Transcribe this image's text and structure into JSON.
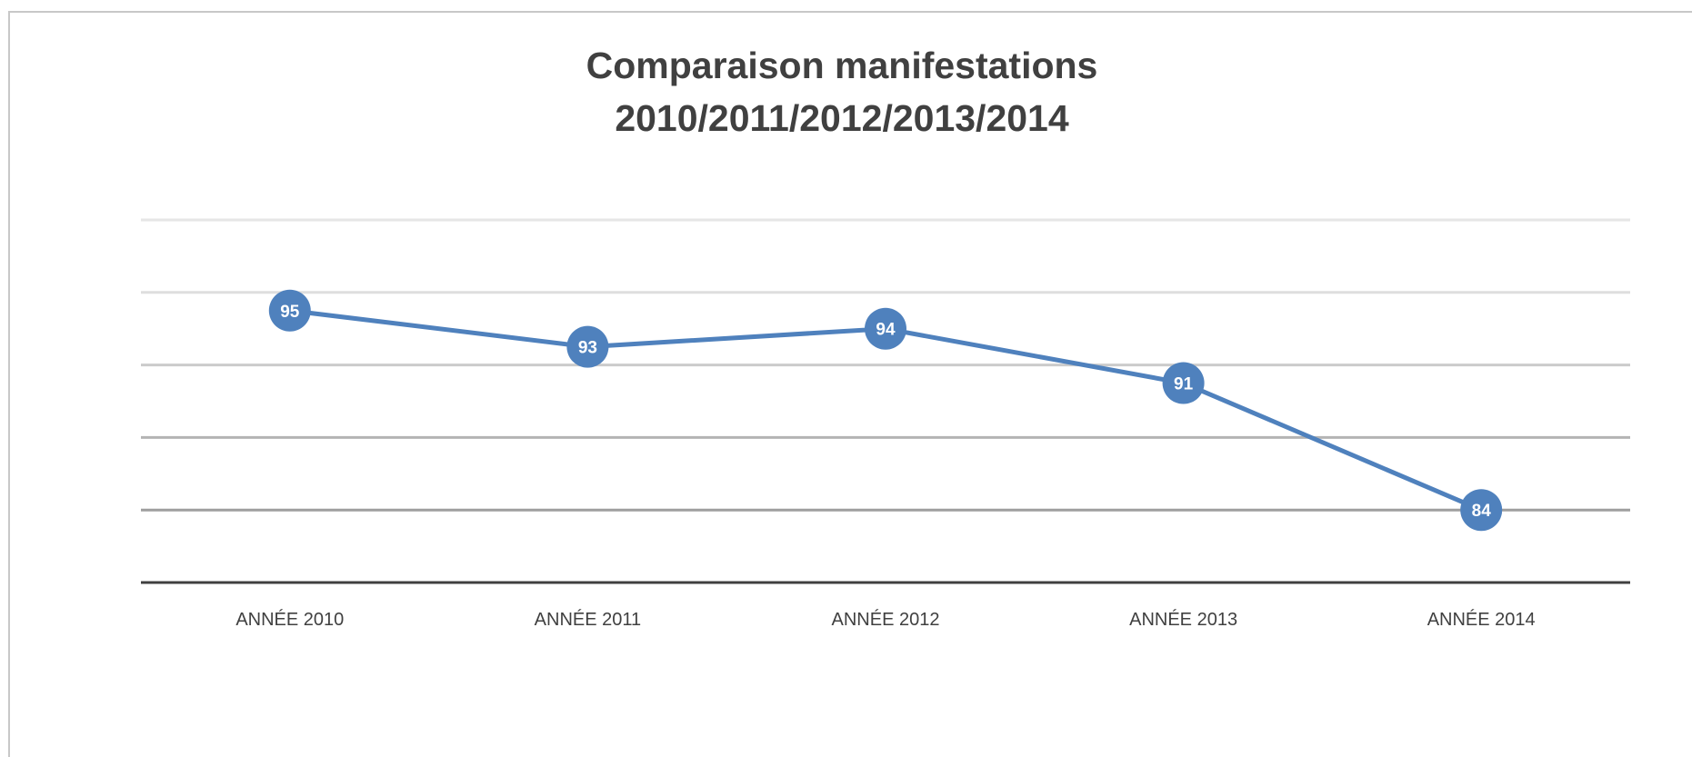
{
  "chart_data": {
    "type": "line",
    "title_lines": [
      "Comparaison manifestations",
      "2010/2011/2012/2013/2014"
    ],
    "categories": [
      "ANNÉE 2010",
      "ANNÉE 2011",
      "ANNÉE 2012",
      "ANNÉE 2013",
      "ANNÉE 2014"
    ],
    "series": [
      {
        "values": [
          95,
          93,
          94,
          91,
          84
        ]
      }
    ],
    "ylim": [
      80,
      100
    ],
    "gridlines": [
      84,
      88,
      92,
      96,
      100
    ],
    "y_axis_labels_shown": false,
    "grid": true,
    "legend": "none",
    "colors": {
      "line": "#4f81bd",
      "marker": "#4f81bd",
      "data_label": "#ffffff",
      "gridline": "#d9d9d9",
      "axis": "#404040",
      "text": "#404040"
    }
  }
}
